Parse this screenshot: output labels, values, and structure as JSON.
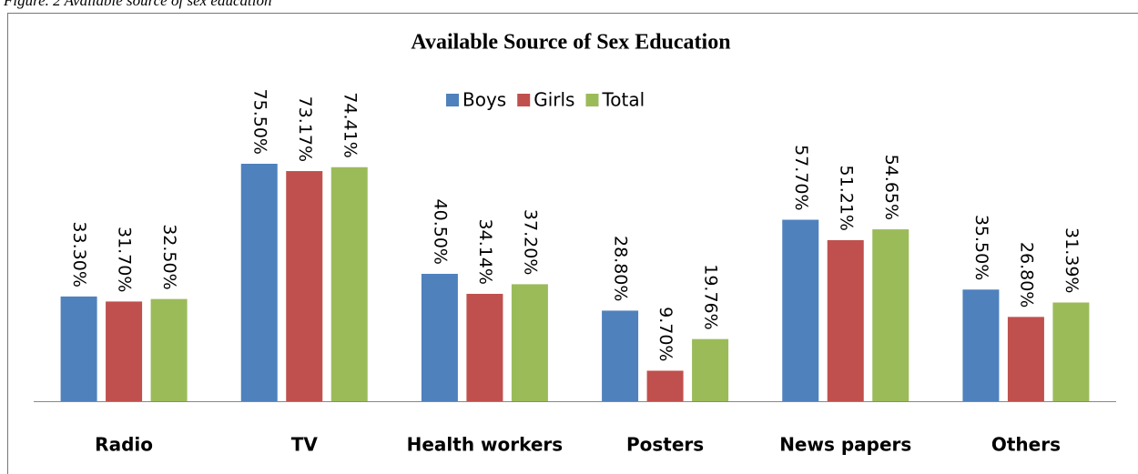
{
  "caption": "Figure. 2 Available source of sex education",
  "chart_data": {
    "type": "bar",
    "title": "Available Source of Sex Education",
    "categories": [
      "Radio",
      "TV",
      "Health workers",
      "Posters",
      "News papers",
      "Others"
    ],
    "series": [
      {
        "name": "Boys",
        "color": "#4f81bd",
        "values": [
          33.3,
          75.5,
          40.5,
          28.8,
          57.7,
          35.5
        ],
        "value_labels": [
          "33.30%",
          "75.50%",
          "40.50%",
          "28.80%",
          "57.70%",
          "35.50%"
        ]
      },
      {
        "name": "Girls",
        "color": "#c0504d",
        "values": [
          31.7,
          73.17,
          34.14,
          9.7,
          51.21,
          26.8
        ],
        "value_labels": [
          "31.70%",
          "73.17%",
          "34.14%",
          "9.70%",
          "51.21%",
          "26.80%"
        ]
      },
      {
        "name": "Total",
        "color": "#9bbb59",
        "values": [
          32.5,
          74.41,
          37.2,
          19.76,
          54.65,
          31.39
        ],
        "value_labels": [
          "32.50%",
          "74.41%",
          "37.20%",
          "19.76%",
          "54.65%",
          "31.39%"
        ]
      }
    ],
    "ylim": [
      0,
      100
    ],
    "legend": "top"
  }
}
